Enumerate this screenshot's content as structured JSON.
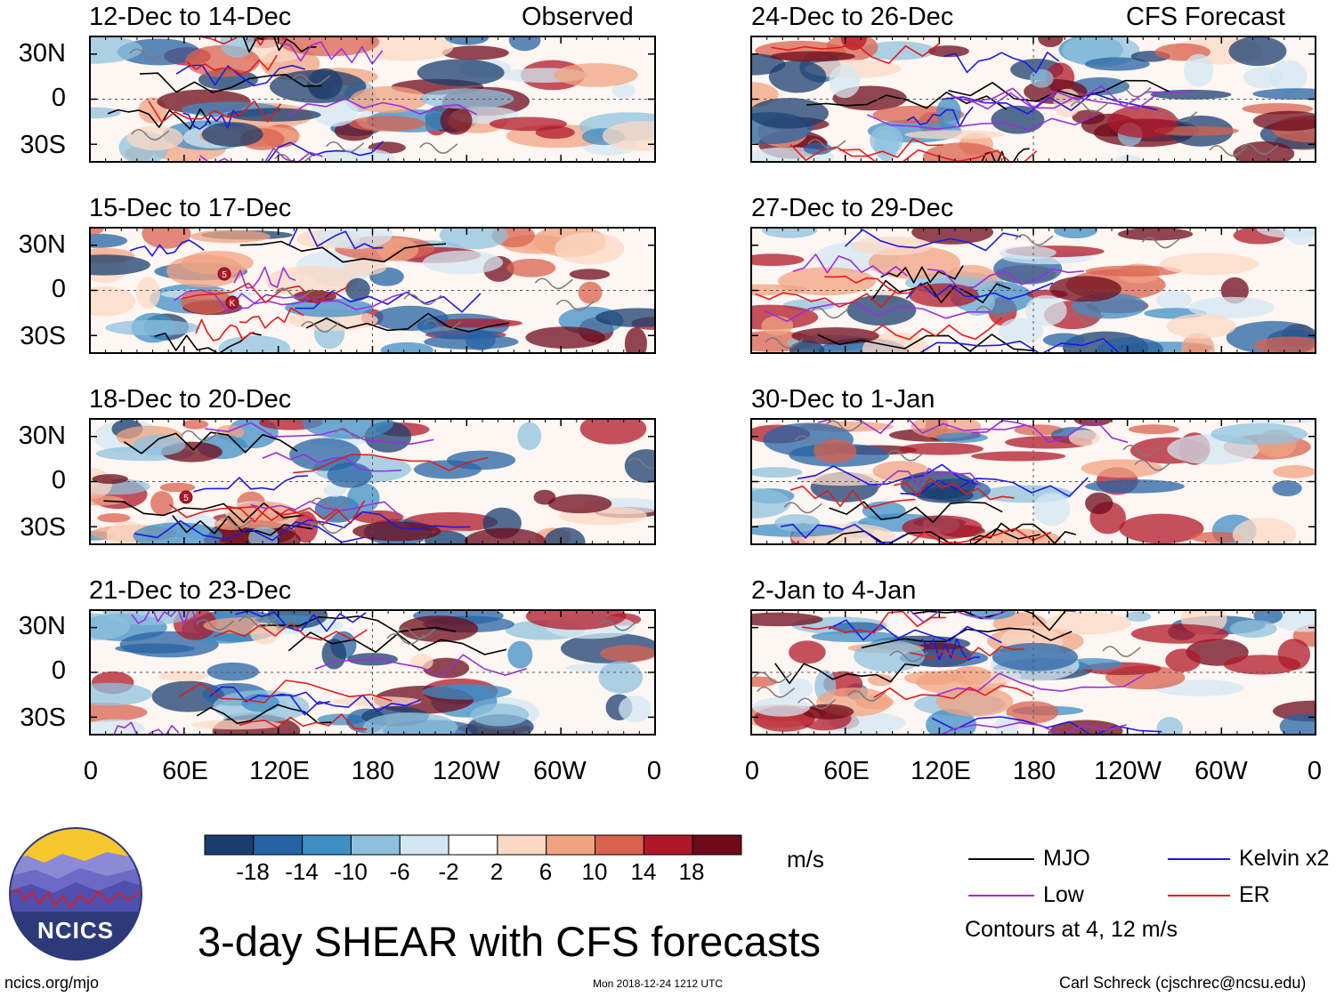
{
  "chart_data": {
    "type": "heatmap",
    "title": "3-day SHEAR with CFS forecasts",
    "units": "m/s",
    "observed_label": "Observed",
    "forecast_label": "CFS Forecast",
    "panels": [
      {
        "title": "12-Dec to 14-Dec",
        "kind": "observed"
      },
      {
        "title": "15-Dec to 17-Dec",
        "kind": "observed"
      },
      {
        "title": "18-Dec to 20-Dec",
        "kind": "observed"
      },
      {
        "title": "21-Dec to 23-Dec",
        "kind": "observed"
      },
      {
        "title": "24-Dec to 26-Dec",
        "kind": "forecast"
      },
      {
        "title": "27-Dec to 29-Dec",
        "kind": "forecast"
      },
      {
        "title": "30-Dec to 1-Jan",
        "kind": "forecast"
      },
      {
        "title": "2-Jan to 4-Jan",
        "kind": "forecast"
      }
    ],
    "y_ticks": [
      "30N",
      "0",
      "30S"
    ],
    "x_ticks": [
      "0",
      "60E",
      "120E",
      "180",
      "120W",
      "60W",
      "0"
    ],
    "colorbar": {
      "labels": [
        "-18",
        "-14",
        "-10",
        "-6",
        "-2",
        "2",
        "6",
        "10",
        "14",
        "18"
      ],
      "colors": [
        "#1a3d6e",
        "#2563a4",
        "#3f8ec4",
        "#8fc1de",
        "#d3e7f2",
        "#ffffff",
        "#fbd8c4",
        "#f0a381",
        "#d9614f",
        "#b0182a",
        "#6e0a1a"
      ]
    },
    "legend": [
      {
        "label": "MJO",
        "color": "#000000"
      },
      {
        "label": "Kelvin x2",
        "color": "#1a1ae6"
      },
      {
        "label": "Low",
        "color": "#9a2fe0"
      },
      {
        "label": "ER",
        "color": "#e61a1a"
      }
    ],
    "contours_note": "Contours at 4, 12 m/s"
  },
  "footer": {
    "logo_text": "NCICS",
    "url": "ncics.org/mjo",
    "timestamp": "Mon 2018-12-24 1212 UTC",
    "credit": "Carl Schreck (cjschrec@ncsu.edu)"
  },
  "markers": [
    "5",
    "K",
    "5"
  ]
}
